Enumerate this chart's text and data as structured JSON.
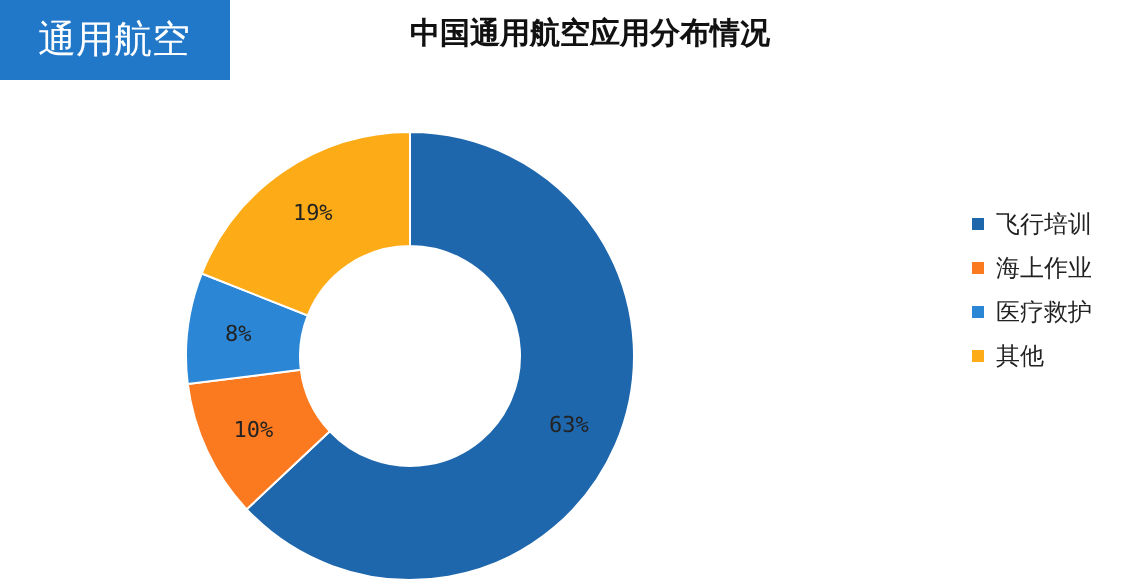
{
  "chart_data": {
    "type": "donut",
    "title": "中国通用航空应用分布情况",
    "subtitle": "通用航空",
    "categories": [
      "飞行培训",
      "海上作业",
      "医疗救护",
      "其他"
    ],
    "values": [
      63,
      10,
      8,
      19
    ],
    "value_labels": [
      "63%",
      "10%",
      "8%",
      "19%"
    ],
    "colors": [
      "#1f67ad",
      "#fb7a20",
      "#2b86d6",
      "#fdab17"
    ],
    "legend": "right"
  }
}
